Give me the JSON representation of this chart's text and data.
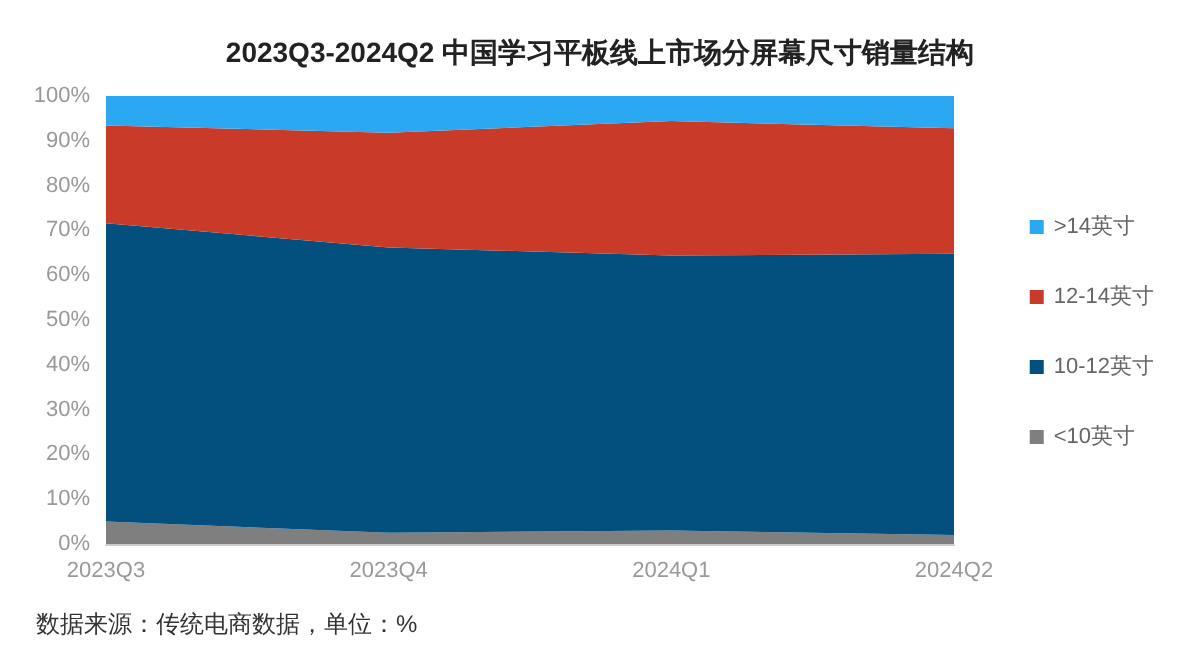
{
  "chart_data": {
    "type": "area",
    "title": "2023Q3-2024Q2 中国学习平板线上市场分屏幕尺寸销量结构",
    "annotations": [
      "数据来源：传统电商数据，单位：%"
    ],
    "categories": [
      "2023Q3",
      "2023Q4",
      "2024Q1",
      "2024Q2"
    ],
    "stacked": true,
    "series": [
      {
        "name": "<10英寸",
        "color": "#7f7f7f",
        "values": [
          5,
          2.5,
          3,
          2
        ]
      },
      {
        "name": "10-12英寸",
        "color": "#03507f",
        "values": [
          66.6,
          63.7,
          61.4,
          62.8
        ]
      },
      {
        "name": "12-14英寸",
        "color": "#c93a28",
        "values": [
          21.8,
          25.6,
          30,
          28
        ]
      },
      {
        "name": ">14英寸",
        "color": "#2aa8f2",
        "values": [
          6.6,
          8.2,
          5.6,
          7.2
        ]
      }
    ],
    "ylim": [
      0,
      100
    ],
    "yticks": [
      {
        "value": 0,
        "label": "0%"
      },
      {
        "value": 10,
        "label": "10%"
      },
      {
        "value": 20,
        "label": "20%"
      },
      {
        "value": 30,
        "label": "30%"
      },
      {
        "value": 40,
        "label": "40%"
      },
      {
        "value": 50,
        "label": "50%"
      },
      {
        "value": 60,
        "label": "60%"
      },
      {
        "value": 70,
        "label": "70%"
      },
      {
        "value": 80,
        "label": "80%"
      },
      {
        "value": 90,
        "label": "90%"
      },
      {
        "value": 100,
        "label": "100%"
      }
    ],
    "grid": false,
    "legend": "right",
    "marker": "none"
  }
}
